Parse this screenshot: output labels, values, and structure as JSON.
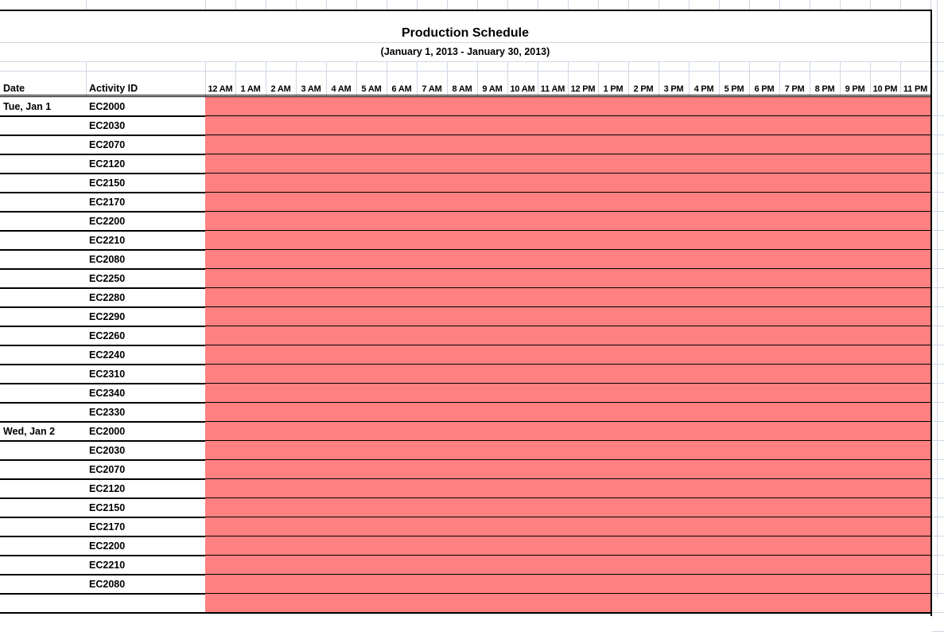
{
  "sheet": {
    "title": "Production Schedule",
    "subtitle": "(January 1, 2013 - January 30, 2013)",
    "headers": {
      "date": "Date",
      "activity": "Activity ID"
    },
    "hours": [
      "12 AM",
      "1 AM",
      "2 AM",
      "3 AM",
      "4 AM",
      "5 AM",
      "6 AM",
      "7 AM",
      "8 AM",
      "9 AM",
      "10 AM",
      "11 AM",
      "12 PM",
      "1 PM",
      "2 PM",
      "3 PM",
      "4 PM",
      "5 PM",
      "6 PM",
      "7 PM",
      "8 PM",
      "9 PM",
      "10 PM",
      "11 PM"
    ],
    "fill_color": "#ff8080",
    "rows": [
      {
        "date": "Tue, Jan 1",
        "activity": "EC2000"
      },
      {
        "date": "",
        "activity": "EC2030"
      },
      {
        "date": "",
        "activity": "EC2070"
      },
      {
        "date": "",
        "activity": "EC2120"
      },
      {
        "date": "",
        "activity": "EC2150"
      },
      {
        "date": "",
        "activity": "EC2170"
      },
      {
        "date": "",
        "activity": "EC2200"
      },
      {
        "date": "",
        "activity": "EC2210"
      },
      {
        "date": "",
        "activity": "EC2080"
      },
      {
        "date": "",
        "activity": "EC2250"
      },
      {
        "date": "",
        "activity": "EC2280"
      },
      {
        "date": "",
        "activity": "EC2290"
      },
      {
        "date": "",
        "activity": "EC2260"
      },
      {
        "date": "",
        "activity": "EC2240"
      },
      {
        "date": "",
        "activity": "EC2310"
      },
      {
        "date": "",
        "activity": "EC2340"
      },
      {
        "date": "",
        "activity": "EC2330"
      },
      {
        "date": "Wed, Jan 2",
        "activity": "EC2000"
      },
      {
        "date": "",
        "activity": "EC2030"
      },
      {
        "date": "",
        "activity": "EC2070"
      },
      {
        "date": "",
        "activity": "EC2120"
      },
      {
        "date": "",
        "activity": "EC2150"
      },
      {
        "date": "",
        "activity": "EC2170"
      },
      {
        "date": "",
        "activity": "EC2200"
      },
      {
        "date": "",
        "activity": "EC2210"
      },
      {
        "date": "",
        "activity": "EC2080"
      },
      {
        "date": "",
        "activity": ""
      }
    ]
  }
}
